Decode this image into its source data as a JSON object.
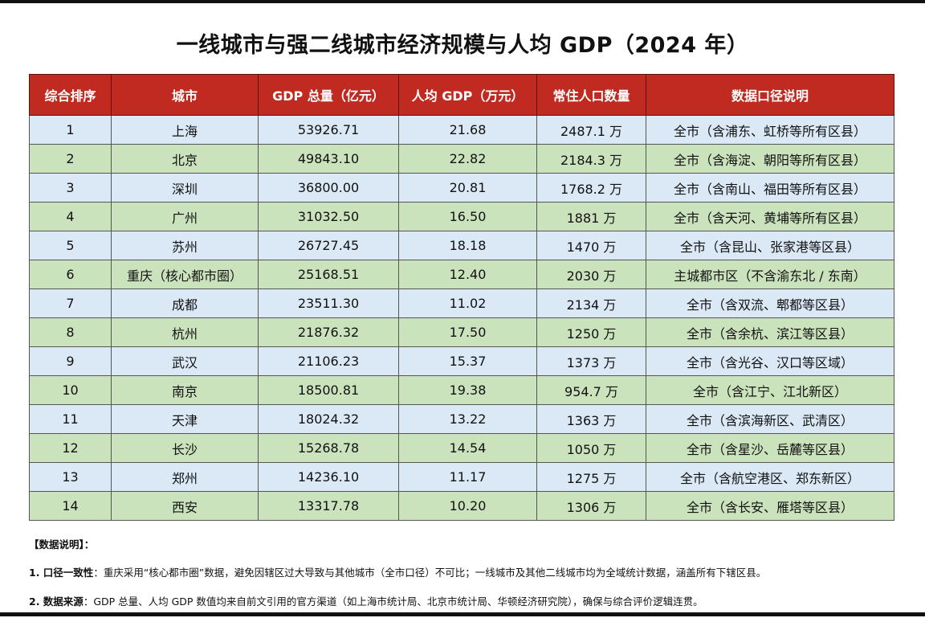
{
  "title": "一线城市与强二线城市经济规模与人均 GDP（2024 年）",
  "table": {
    "headers": [
      "综合排序",
      "城市",
      "GDP 总量（亿元）",
      "人均 GDP（万元）",
      "常住人口数量",
      "数据口径说明"
    ],
    "rows": [
      {
        "rank": "1",
        "city": "上海",
        "gdp": "53926.71",
        "per_capita": "21.68",
        "population": "2487.1 万",
        "note": "全市（含浦东、虹桥等所有区县）"
      },
      {
        "rank": "2",
        "city": "北京",
        "gdp": "49843.10",
        "per_capita": "22.82",
        "population": "2184.3 万",
        "note": "全市（含海淀、朝阳等所有区县）"
      },
      {
        "rank": "3",
        "city": "深圳",
        "gdp": "36800.00",
        "per_capita": "20.81",
        "population": "1768.2 万",
        "note": "全市（含南山、福田等所有区县）"
      },
      {
        "rank": "4",
        "city": "广州",
        "gdp": "31032.50",
        "per_capita": "16.50",
        "population": "1881 万",
        "note": "全市（含天河、黄埔等所有区县）"
      },
      {
        "rank": "5",
        "city": "苏州",
        "gdp": "26727.45",
        "per_capita": "18.18",
        "population": "1470 万",
        "note": "全市（含昆山、张家港等区县）"
      },
      {
        "rank": "6",
        "city": "重庆（核心都市圈）",
        "gdp": "25168.51",
        "per_capita": "12.40",
        "population": "2030 万",
        "note": "主城都市区（不含渝东北 / 东南）"
      },
      {
        "rank": "7",
        "city": "成都",
        "gdp": "23511.30",
        "per_capita": "11.02",
        "population": "2134 万",
        "note": "全市（含双流、郫都等区县）"
      },
      {
        "rank": "8",
        "city": "杭州",
        "gdp": "21876.32",
        "per_capita": "17.50",
        "population": "1250 万",
        "note": "全市（含余杭、滨江等区县）"
      },
      {
        "rank": "9",
        "city": "武汉",
        "gdp": "21106.23",
        "per_capita": "15.37",
        "population": "1373 万",
        "note": "全市（含光谷、汉口等区域）"
      },
      {
        "rank": "10",
        "city": "南京",
        "gdp": "18500.81",
        "per_capita": "19.38",
        "population": "954.7 万",
        "note": "全市（含江宁、江北新区）"
      },
      {
        "rank": "11",
        "city": "天津",
        "gdp": "18024.32",
        "per_capita": "13.22",
        "population": "1363 万",
        "note": "全市（含滨海新区、武清区）"
      },
      {
        "rank": "12",
        "city": "长沙",
        "gdp": "15268.78",
        "per_capita": "14.54",
        "population": "1050 万",
        "note": "全市（含星沙、岳麓等区县）"
      },
      {
        "rank": "13",
        "city": "郑州",
        "gdp": "14236.10",
        "per_capita": "11.17",
        "population": "1275 万",
        "note": "全市（含航空港区、郑东新区）"
      },
      {
        "rank": "14",
        "city": "西安",
        "gdp": "13317.78",
        "per_capita": "10.20",
        "population": "1306 万",
        "note": "全市（含长安、雁塔等区县）"
      }
    ]
  },
  "notes": {
    "heading": "【数据说明】：",
    "items": [
      {
        "label": "1. 口径一致性",
        "text": "：重庆采用“核心都市圈”数据，避免因辖区过大导致与其他城市（全市口径）不可比；一线城市及其他二线城市均为全域统计数据，涵盖所有下辖区县。"
      },
      {
        "label": "2. 数据来源",
        "text": "：GDP 总量、人均 GDP 数值均来自前文引用的官方渠道（如上海市统计局、北京市统计局、华顿经济研究院），确保与综合评价逻辑连贯。"
      }
    ]
  },
  "colors": {
    "header_bg": "#c02a20",
    "row_blue": "#dbe9f6",
    "row_green": "#cbe3bc"
  }
}
